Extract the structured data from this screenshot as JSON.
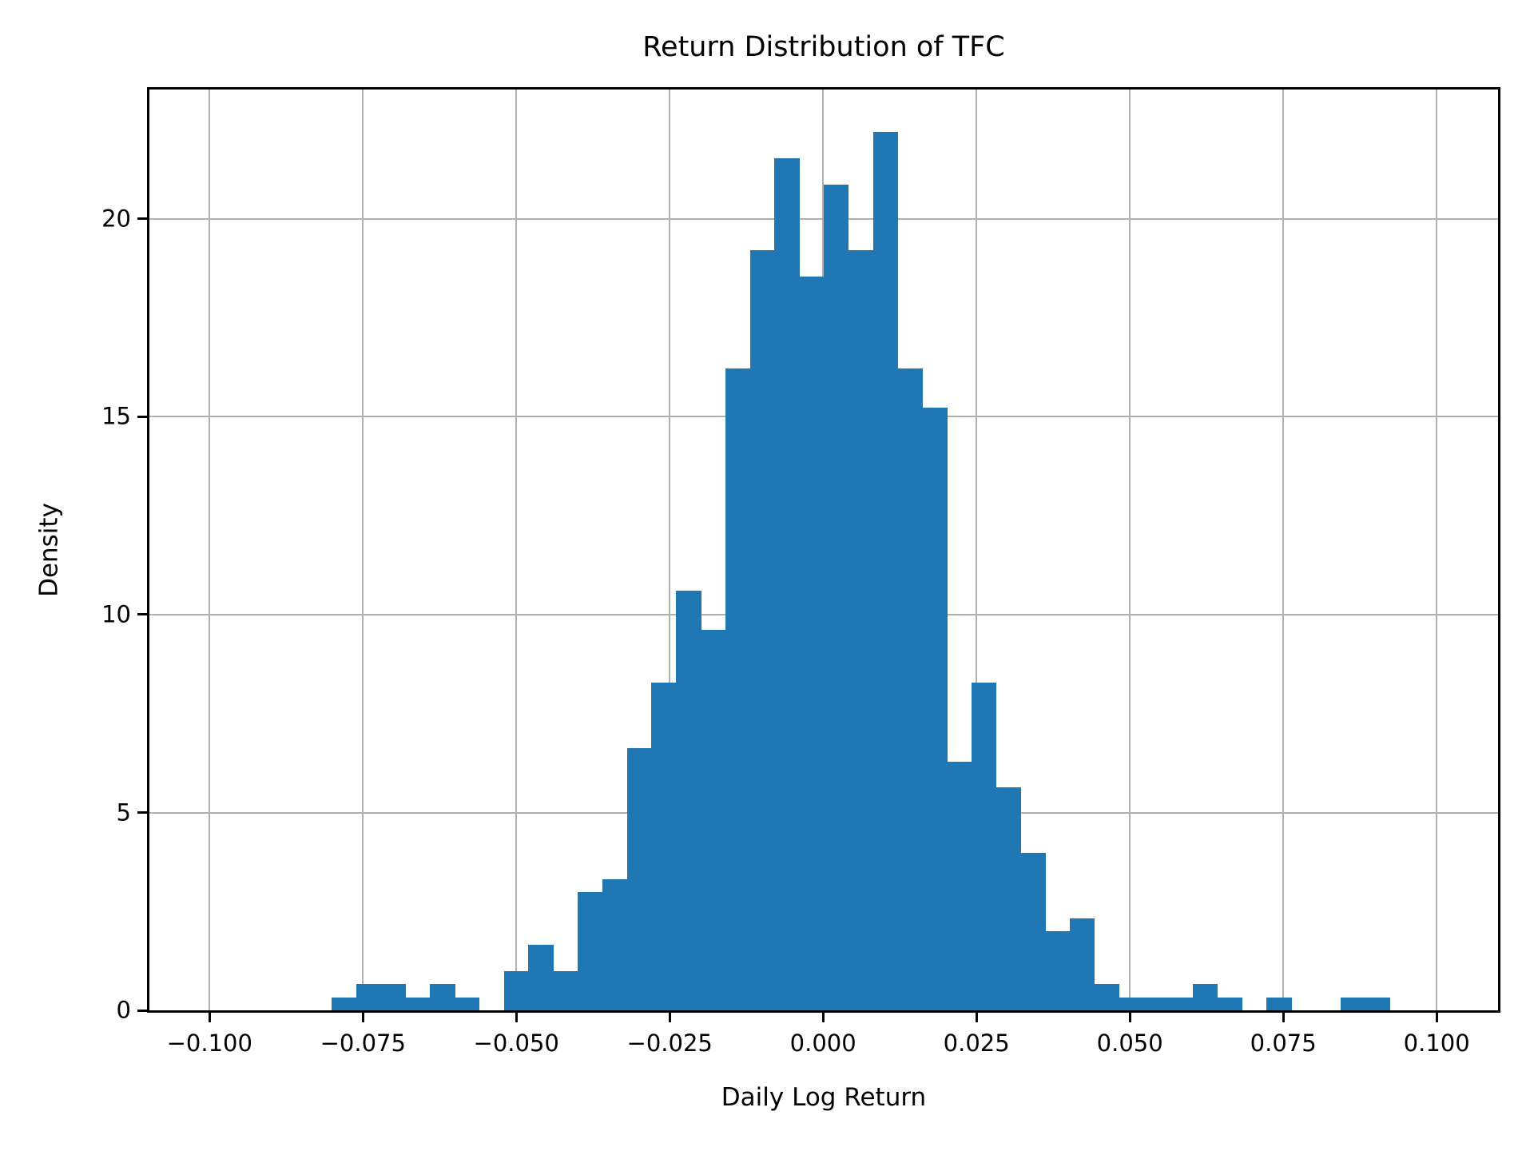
{
  "figure": {
    "title": "Return Distribution of TFC",
    "xlabel": "Daily Log Return",
    "ylabel": "Density"
  },
  "chart_data": {
    "type": "bar",
    "subtype": "histogram",
    "title": "Return Distribution of TFC",
    "xlabel": "Daily Log Return",
    "ylabel": "Density",
    "bar_color": "#1f77b4",
    "grid_color": "#b0b0b0",
    "grid": true,
    "legend_position": "none",
    "xlim": [
      -0.1098,
      0.11
    ],
    "ylim": [
      0,
      23.27
    ],
    "bin_start": -0.0801,
    "bin_width": 0.00401,
    "densities": [
      0.33,
      0.66,
      0.66,
      0.33,
      0.66,
      0.33,
      0,
      0.99,
      1.66,
      0.99,
      2.98,
      3.31,
      6.63,
      8.28,
      10.6,
      9.61,
      16.23,
      19.21,
      21.53,
      18.55,
      20.87,
      19.21,
      22.19,
      16.23,
      15.24,
      6.29,
      8.28,
      5.63,
      3.98,
      1.99,
      2.32,
      0.66,
      0.33,
      0.33,
      0.33,
      0.66,
      0.33,
      0,
      0.33,
      0,
      0,
      0.33,
      0.33
    ],
    "x_ticks": [
      {
        "value": -0.1,
        "label": "−0.100"
      },
      {
        "value": -0.075,
        "label": "−0.075"
      },
      {
        "value": -0.05,
        "label": "−0.050"
      },
      {
        "value": -0.025,
        "label": "−0.025"
      },
      {
        "value": 0.0,
        "label": "0.000"
      },
      {
        "value": 0.025,
        "label": "0.025"
      },
      {
        "value": 0.05,
        "label": "0.050"
      },
      {
        "value": 0.075,
        "label": "0.075"
      },
      {
        "value": 0.1,
        "label": "0.100"
      }
    ],
    "y_ticks": [
      {
        "value": 0,
        "label": "0"
      },
      {
        "value": 5,
        "label": "5"
      },
      {
        "value": 10,
        "label": "10"
      },
      {
        "value": 15,
        "label": "15"
      },
      {
        "value": 20,
        "label": "20"
      }
    ]
  }
}
